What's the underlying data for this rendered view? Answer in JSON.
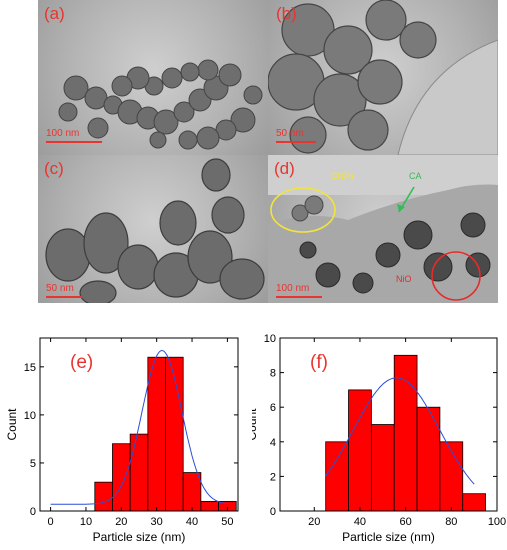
{
  "figure": {
    "panels": [
      {
        "id": "a",
        "label": "(a)",
        "scale": "100  nm"
      },
      {
        "id": "b",
        "label": "(b)",
        "scale": "50  nm"
      },
      {
        "id": "c",
        "label": "(c)",
        "scale": "50  nm"
      },
      {
        "id": "d",
        "label": "(d)",
        "scale": "100  nm",
        "annotations": {
          "cnps": "CNPs",
          "ca": "CA",
          "nio": "NiO"
        }
      }
    ]
  },
  "colors": {
    "bar_fill": "#ff0000",
    "bar_stroke": "#000000",
    "fit_curve": "#2b4fd6",
    "label_red": "#e8352f",
    "annot_yellow": "#f1e43a",
    "annot_green": "#2fbf52",
    "circle_red": "#e82a2a"
  },
  "chart_data": [
    {
      "type": "bar",
      "panel_label": "(e)",
      "xlabel": "Particle size (nm)",
      "ylabel": "Count",
      "xlim": [
        -3,
        53
      ],
      "ylim": [
        0,
        18
      ],
      "xticks": [
        0,
        10,
        20,
        30,
        40,
        50
      ],
      "yticks": [
        0,
        5,
        10,
        15
      ],
      "bin_width": 5,
      "x": [
        15,
        20,
        25,
        30,
        35,
        40,
        45,
        50
      ],
      "values": [
        3,
        7,
        8,
        16,
        16,
        4,
        1,
        1
      ],
      "fit": "gaussian",
      "fit_center": 31.5,
      "fit_sigma": 5.6,
      "fit_peak": 16.7,
      "fit_baseline": 0.7
    },
    {
      "type": "bar",
      "panel_label": "(f)",
      "xlabel": "Particle size (nm)",
      "ylabel": "Count",
      "xlim": [
        5,
        100
      ],
      "ylim": [
        0,
        10
      ],
      "xticks": [
        20,
        40,
        60,
        80,
        100
      ],
      "yticks": [
        0,
        2,
        4,
        6,
        8,
        10
      ],
      "bin_width": 10,
      "x": [
        30,
        40,
        50,
        60,
        70,
        80,
        90
      ],
      "values": [
        4,
        7,
        5,
        9,
        6,
        4,
        1
      ],
      "fit": "gaussian",
      "fit_center": 56,
      "fit_sigma": 19,
      "fit_peak": 7.7,
      "fit_baseline": 0
    }
  ]
}
